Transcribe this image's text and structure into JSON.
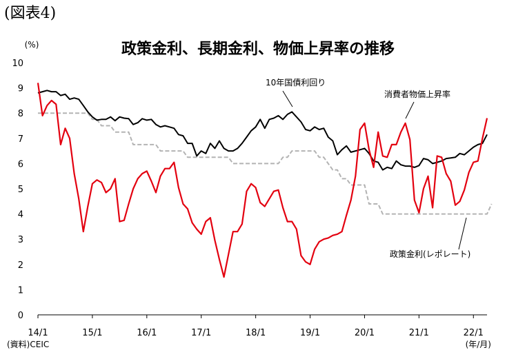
{
  "figure_label": "(図表4)",
  "chart_data": {
    "type": "line",
    "title": "政策金利、長期金利、物価上昇率の推移",
    "y_unit": "(%)",
    "source": "(資料)CEIC",
    "x_unit": "(年/月)",
    "ylim": [
      0,
      10
    ],
    "yticks": [
      "0",
      "1",
      "2",
      "3",
      "4",
      "5",
      "6",
      "7",
      "8",
      "9",
      "10"
    ],
    "xticks": [
      "14/1",
      "15/1",
      "16/1",
      "17/1",
      "18/1",
      "19/1",
      "20/1",
      "21/1",
      "22/1"
    ],
    "grid": false,
    "annotations": {
      "long_rate": "10年国債利回り",
      "cpi": "消費者物価上昇率",
      "policy_rate": "政策金利(レポレート)"
    },
    "colors": {
      "long_rate": "#000000",
      "cpi": "#e3000f",
      "policy_rate": "#b3b3b3"
    },
    "series": [
      {
        "key": "long_rate",
        "style": "solid",
        "values": [
          8.8,
          8.85,
          8.9,
          8.85,
          8.85,
          8.7,
          8.75,
          8.55,
          8.6,
          8.55,
          8.3,
          8.05,
          7.85,
          7.72,
          7.75,
          7.75,
          7.85,
          7.7,
          7.85,
          7.8,
          7.78,
          7.55,
          7.62,
          7.78,
          7.72,
          7.75,
          7.55,
          7.45,
          7.5,
          7.45,
          7.4,
          7.15,
          7.1,
          6.8,
          6.8,
          6.3,
          6.5,
          6.4,
          6.8,
          6.6,
          6.9,
          6.6,
          6.5,
          6.5,
          6.6,
          6.8,
          7.05,
          7.3,
          7.45,
          7.75,
          7.4,
          7.75,
          7.8,
          7.9,
          7.75,
          7.95,
          8.05,
          7.85,
          7.65,
          7.35,
          7.3,
          7.45,
          7.35,
          7.4,
          7.05,
          6.9,
          6.35,
          6.55,
          6.7,
          6.45,
          6.5,
          6.55,
          6.6,
          6.4,
          6.1,
          6.05,
          5.75,
          5.85,
          5.8,
          6.1,
          5.95,
          5.9,
          5.9,
          5.85,
          5.92,
          6.2,
          6.15,
          6.0,
          6.05,
          6.1,
          6.2,
          6.22,
          6.25,
          6.4,
          6.35,
          6.5,
          6.65,
          6.75,
          6.8,
          7.15
        ]
      },
      {
        "key": "cpi",
        "style": "solid",
        "values": [
          9.2,
          7.9,
          8.3,
          8.5,
          8.35,
          6.75,
          7.4,
          7.0,
          5.6,
          4.6,
          3.3,
          4.3,
          5.2,
          5.35,
          5.25,
          4.85,
          5.0,
          5.4,
          3.7,
          3.75,
          4.4,
          5.0,
          5.4,
          5.6,
          5.7,
          5.3,
          4.85,
          5.5,
          5.8,
          5.8,
          6.05,
          5.05,
          4.4,
          4.2,
          3.65,
          3.4,
          3.2,
          3.7,
          3.85,
          2.95,
          2.2,
          1.5,
          2.4,
          3.3,
          3.3,
          3.6,
          4.9,
          5.2,
          5.05,
          4.45,
          4.3,
          4.6,
          4.9,
          4.95,
          4.25,
          3.7,
          3.7,
          3.4,
          2.35,
          2.1,
          2.0,
          2.6,
          2.9,
          3.0,
          3.05,
          3.15,
          3.2,
          3.3,
          3.95,
          4.55,
          5.5,
          7.35,
          7.6,
          6.55,
          5.85,
          7.25,
          6.3,
          6.25,
          6.75,
          6.75,
          7.25,
          7.6,
          6.95,
          4.55,
          4.05,
          5.0,
          5.5,
          4.25,
          6.3,
          6.25,
          5.6,
          5.3,
          4.35,
          4.5,
          4.95,
          5.65,
          6.05,
          6.1,
          7.0,
          7.8
        ]
      },
      {
        "key": "policy_rate",
        "style": "dashed",
        "values": [
          8.0,
          8.0,
          8.0,
          8.0,
          8.0,
          8.0,
          8.0,
          8.0,
          8.0,
          8.0,
          8.0,
          8.0,
          7.75,
          7.75,
          7.5,
          7.5,
          7.5,
          7.25,
          7.25,
          7.25,
          7.25,
          6.75,
          6.75,
          6.75,
          6.75,
          6.75,
          6.75,
          6.5,
          6.5,
          6.5,
          6.5,
          6.5,
          6.5,
          6.25,
          6.25,
          6.25,
          6.25,
          6.25,
          6.25,
          6.25,
          6.25,
          6.25,
          6.25,
          6.0,
          6.0,
          6.0,
          6.0,
          6.0,
          6.0,
          6.0,
          6.0,
          6.0,
          6.0,
          6.0,
          6.25,
          6.25,
          6.5,
          6.5,
          6.5,
          6.5,
          6.5,
          6.5,
          6.25,
          6.25,
          6.0,
          5.75,
          5.75,
          5.4,
          5.4,
          5.15,
          5.15,
          5.15,
          5.15,
          4.4,
          4.4,
          4.4,
          4.0,
          4.0,
          4.0,
          4.0,
          4.0,
          4.0,
          4.0,
          4.0,
          4.0,
          4.0,
          4.0,
          4.0,
          4.0,
          4.0,
          4.0,
          4.0,
          4.0,
          4.0,
          4.0,
          4.0,
          4.0,
          4.0,
          4.0,
          4.0,
          4.4
        ]
      }
    ]
  }
}
